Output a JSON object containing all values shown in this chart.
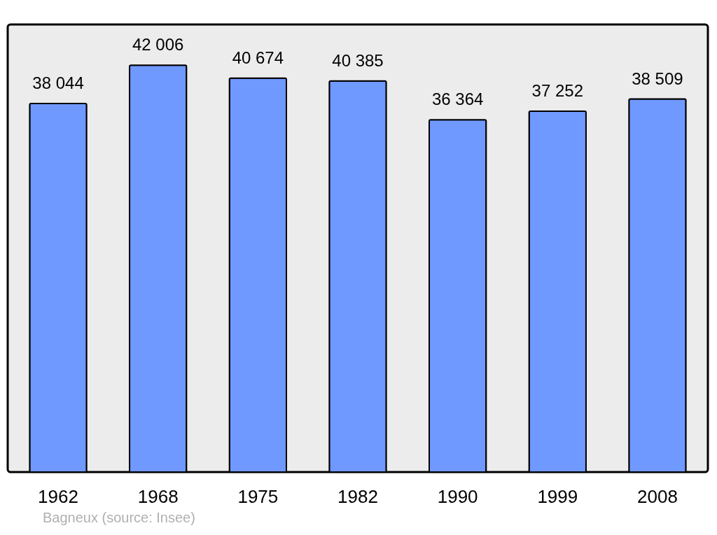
{
  "chart_data": {
    "type": "bar",
    "categories": [
      "1962",
      "1968",
      "1975",
      "1982",
      "1990",
      "1999",
      "2008"
    ],
    "values": [
      38044,
      42006,
      40674,
      40385,
      36364,
      37252,
      38509
    ],
    "value_labels": [
      "38 044",
      "42 006",
      "40 674",
      "40 385",
      "36 364",
      "37 252",
      "38 509"
    ],
    "color": "#7099ff",
    "grid": false,
    "annotations": [
      "Bagneux    (source: Insee)"
    ]
  }
}
